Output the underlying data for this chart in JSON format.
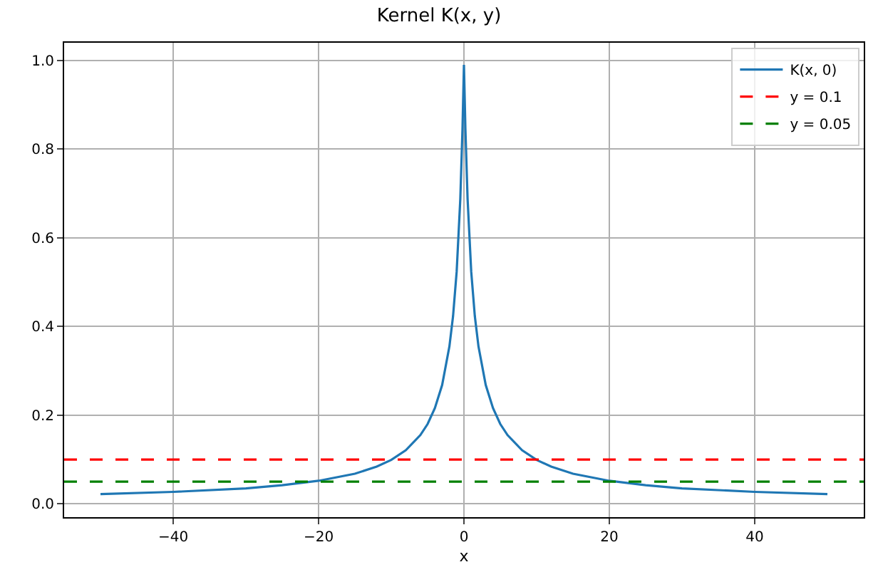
{
  "chart_data": {
    "type": "line",
    "title": "Kernel K(x, y)",
    "xlabel": "x",
    "x": [
      -50,
      -40,
      -30,
      -25,
      -20,
      -15,
      -12,
      -10,
      -8,
      -6,
      -5,
      -4,
      -3,
      -2,
      -1.5,
      -1,
      -0.5,
      -0.2,
      0,
      0.2,
      0.5,
      1,
      1.5,
      2,
      3,
      4,
      5,
      6,
      8,
      10,
      12,
      15,
      20,
      25,
      30,
      40,
      50
    ],
    "series": [
      {
        "name": "K(x, 0)",
        "color": "#1f77b4",
        "values": [
          0.022,
          0.027,
          0.035,
          0.042,
          0.052,
          0.068,
          0.084,
          0.099,
          0.121,
          0.155,
          0.18,
          0.216,
          0.268,
          0.355,
          0.423,
          0.524,
          0.688,
          0.846,
          0.99,
          0.846,
          0.688,
          0.524,
          0.423,
          0.355,
          0.268,
          0.216,
          0.18,
          0.155,
          0.121,
          0.099,
          0.084,
          0.068,
          0.052,
          0.042,
          0.035,
          0.027,
          0.022
        ]
      }
    ],
    "ref_lines": [
      {
        "axis": "y",
        "value": 0.1,
        "label": "y = 0.1",
        "color": "#ff0000",
        "line_style": "dashed"
      },
      {
        "axis": "y",
        "value": 0.05,
        "label": "y = 0.05",
        "color": "#008000",
        "line_style": "dashed"
      }
    ],
    "xlim": [
      -55,
      55
    ],
    "ylim": [
      -0.03,
      1.04
    ],
    "xticks": [
      {
        "value": -40,
        "label": "−40"
      },
      {
        "value": -20,
        "label": "−20"
      },
      0,
      20,
      40
    ],
    "yticks": [
      {
        "value": 0,
        "label": "0.0"
      },
      0.2,
      0.4,
      0.6,
      0.8,
      {
        "value": 1,
        "label": "1.0"
      }
    ],
    "grid": true,
    "legend": "top right",
    "marker": "none",
    "line_style": "solid"
  }
}
